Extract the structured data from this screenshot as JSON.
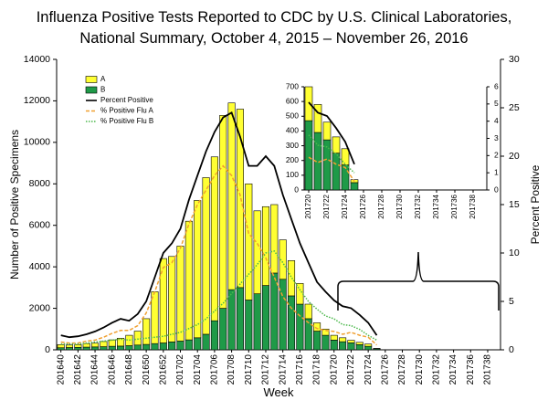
{
  "chart_data": [
    {
      "type": "bar",
      "title": [
        "Influenza Positive Tests Reported to CDC by U.S. Clinical Laboratories,",
        "National Summary, October 4, 2015 – November 26, 2016"
      ],
      "xlabel": "Week",
      "ylabel": "Number of Positive Specimens",
      "y2label": "Percent Positive",
      "categories": [
        "201640",
        null,
        "201642",
        null,
        "201644",
        null,
        "201646",
        null,
        "201648",
        null,
        "201650",
        null,
        "201652",
        null,
        "201702",
        null,
        "201704",
        null,
        "201706",
        null,
        "201708",
        null,
        "201710",
        null,
        "201712",
        null,
        "201714",
        null,
        "201716",
        null,
        "201718",
        null,
        "201720",
        null,
        "201722",
        null,
        "201724",
        null,
        "201726",
        null,
        "201728",
        null,
        "201730",
        null,
        "201732",
        null,
        "201734",
        null,
        "201736",
        null,
        "201738",
        null
      ],
      "ylim": [
        0,
        14000
      ],
      "yticks": [
        0,
        2000,
        4000,
        6000,
        8000,
        10000,
        12000,
        14000
      ],
      "y2lim": [
        0,
        30
      ],
      "y2ticks": [
        0,
        5,
        10,
        15,
        20,
        25,
        30
      ],
      "legend": "upper left",
      "series": [
        {
          "name": "A",
          "type": "bar",
          "color": "#ffff33",
          "values": [
            150,
            120,
            130,
            170,
            180,
            250,
            310,
            380,
            500,
            670,
            1240,
            2500,
            4070,
            4120,
            4580,
            5720,
            6620,
            7550,
            7900,
            9300,
            9000,
            8600,
            5600,
            4000,
            3800,
            3300,
            1900,
            1700,
            1000,
            700,
            400,
            300,
            230,
            190,
            120,
            110,
            110,
            20,
            null,
            null,
            null,
            null,
            null,
            null,
            null,
            null,
            null,
            null,
            null,
            null,
            null,
            null
          ]
        },
        {
          "name": "B",
          "type": "bar",
          "color": "#1f9a48",
          "values": [
            100,
            110,
            120,
            130,
            140,
            150,
            170,
            180,
            200,
            230,
            260,
            300,
            330,
            380,
            420,
            480,
            580,
            750,
            1400,
            2000,
            2900,
            3000,
            2400,
            2700,
            3100,
            3700,
            3400,
            2600,
            2200,
            1500,
            900,
            700,
            470,
            390,
            340,
            250,
            170,
            50,
            null,
            null,
            null,
            null,
            null,
            null,
            null,
            null,
            null,
            null,
            null,
            null,
            null,
            null
          ]
        },
        {
          "name": "Percent Positive",
          "type": "line",
          "axis": "y2",
          "color": "#000000",
          "dash": "solid",
          "values": [
            1.5,
            1.3,
            1.4,
            1.6,
            1.9,
            2.3,
            2.8,
            3.2,
            3.0,
            3.7,
            5.0,
            7.5,
            10.0,
            11.0,
            12.5,
            15.5,
            18.0,
            20.5,
            22.5,
            24.0,
            24.5,
            22.0,
            19.0,
            19.0,
            20.0,
            19.0,
            16.0,
            13.5,
            11.0,
            9.0,
            7.0,
            6.0,
            5.1,
            4.5,
            4.3,
            3.6,
            2.8,
            1.5,
            null,
            null,
            null,
            null,
            null,
            null,
            null,
            null,
            null,
            null,
            null,
            null,
            null,
            null
          ]
        },
        {
          "name": "% Positive Flu A",
          "type": "line",
          "axis": "y2",
          "color": "#f0a030",
          "dash": "dashed",
          "values": [
            0.8,
            0.7,
            0.7,
            0.9,
            1.0,
            1.3,
            1.7,
            2.0,
            2.0,
            2.5,
            3.8,
            6.0,
            8.5,
            9.0,
            10.5,
            13.0,
            15.0,
            16.5,
            18.0,
            19.0,
            18.0,
            16.0,
            12.0,
            11.0,
            9.5,
            7.5,
            5.5,
            4.3,
            3.5,
            2.8,
            2.2,
            2.0,
            1.9,
            1.6,
            1.8,
            1.5,
            1.3,
            0.5,
            null,
            null,
            null,
            null,
            null,
            null,
            null,
            null,
            null,
            null,
            null,
            null,
            null,
            null
          ]
        },
        {
          "name": "% Positive Flu B",
          "type": "line",
          "axis": "y2",
          "color": "#4cb84c",
          "dash": "dotted",
          "values": [
            0.6,
            0.6,
            0.6,
            0.7,
            0.8,
            0.9,
            1.0,
            1.1,
            1.0,
            1.1,
            1.2,
            1.3,
            1.4,
            1.6,
            1.8,
            2.2,
            2.6,
            3.2,
            4.0,
            4.8,
            5.8,
            6.8,
            7.8,
            8.8,
            10.0,
            10.2,
            9.0,
            7.5,
            6.2,
            5.0,
            4.2,
            3.5,
            3.2,
            2.6,
            2.5,
            2.1,
            1.5,
            1.0,
            null,
            null,
            null,
            null,
            null,
            null,
            null,
            null,
            null,
            null,
            null,
            null,
            null,
            null
          ]
        }
      ]
    },
    {
      "type": "bar",
      "categories": [
        "201720",
        null,
        "201722",
        null,
        "201724",
        null,
        "201726",
        null,
        "201728",
        null,
        "201730",
        null,
        "201732",
        null,
        "201734",
        null,
        "201736",
        null,
        "201738",
        null
      ],
      "ylim": [
        0,
        700
      ],
      "yticks": [
        0,
        100,
        200,
        300,
        400,
        500,
        600,
        700
      ],
      "y2lim": [
        0,
        6
      ],
      "y2ticks": [
        0,
        1,
        2,
        3,
        4,
        5,
        6
      ],
      "series": [
        {
          "type": "bar",
          "color": "#ffff33",
          "values": [
            230,
            190,
            120,
            110,
            110,
            20,
            null,
            null,
            null,
            null,
            null,
            null,
            null,
            null,
            null,
            null,
            null,
            null,
            null,
            null
          ]
        },
        {
          "type": "bar",
          "color": "#1f9a48",
          "values": [
            470,
            390,
            340,
            250,
            170,
            50,
            null,
            null,
            null,
            null,
            null,
            null,
            null,
            null,
            null,
            null,
            null,
            null,
            null,
            null
          ]
        },
        {
          "type": "line",
          "axis": "y2",
          "color": "#000000",
          "dash": "solid",
          "values": [
            5.1,
            4.5,
            4.3,
            3.6,
            2.8,
            1.5,
            null,
            null,
            null,
            null,
            null,
            null,
            null,
            null,
            null,
            null,
            null,
            null,
            null,
            null
          ]
        },
        {
          "type": "line",
          "axis": "y2",
          "color": "#f0a030",
          "dash": "dashed",
          "values": [
            1.9,
            1.6,
            1.8,
            1.5,
            1.3,
            0.5,
            null,
            null,
            null,
            null,
            null,
            null,
            null,
            null,
            null,
            null,
            null,
            null,
            null,
            null
          ]
        },
        {
          "type": "line",
          "axis": "y2",
          "color": "#4cb84c",
          "dash": "dotted",
          "values": [
            3.2,
            2.6,
            2.5,
            2.1,
            1.5,
            1.0,
            null,
            null,
            null,
            null,
            null,
            null,
            null,
            null,
            null,
            null,
            null,
            null,
            null,
            null
          ]
        }
      ]
    }
  ]
}
